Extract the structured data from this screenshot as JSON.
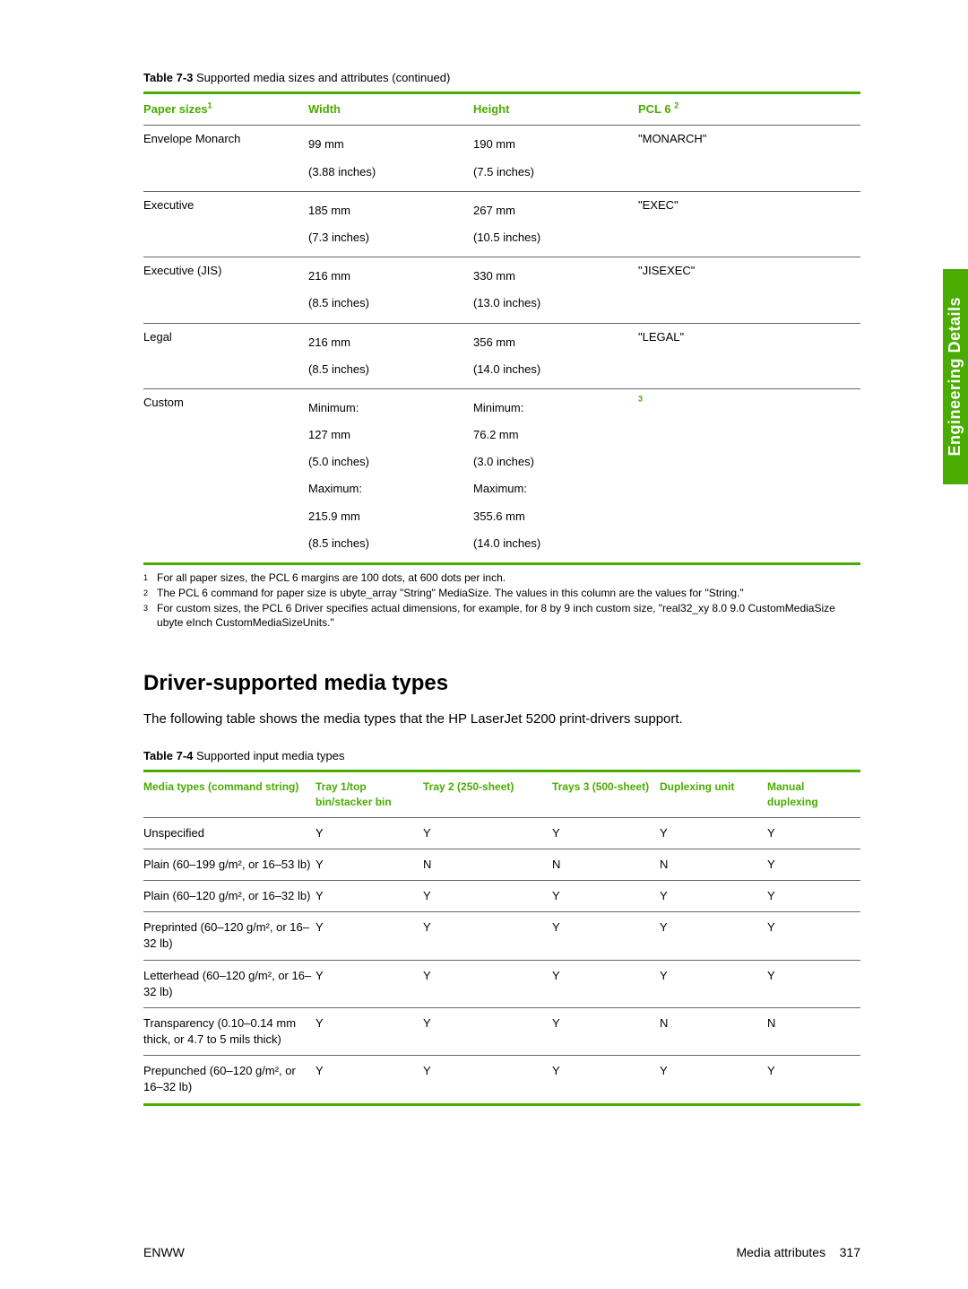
{
  "side_tab": "Engineering Details",
  "table1": {
    "caption_prefix": "Table 7-3",
    "caption_text": "  Supported media sizes and attributes (continued)",
    "headers": {
      "c1": "Paper sizes",
      "c1_sup": "1",
      "c2": "Width",
      "c3": "Height",
      "c4": "PCL 6 ",
      "c4_sup": "2"
    },
    "rows": [
      {
        "name": "Envelope Monarch",
        "w": [
          "99 mm",
          "(3.88 inches)"
        ],
        "h": [
          "190 mm",
          "(7.5 inches)"
        ],
        "pcl": "\"MONARCH\""
      },
      {
        "name": "Executive",
        "w": [
          "185 mm",
          "(7.3 inches)"
        ],
        "h": [
          "267 mm",
          "(10.5 inches)"
        ],
        "pcl": "\"EXEC\""
      },
      {
        "name": "Executive (JIS)",
        "w": [
          "216 mm",
          "(8.5 inches)"
        ],
        "h": [
          "330 mm",
          "(13.0 inches)"
        ],
        "pcl": "\"JISEXEC\""
      },
      {
        "name": "Legal",
        "w": [
          "216 mm",
          "(8.5 inches)"
        ],
        "h": [
          "356 mm",
          "(14.0 inches)"
        ],
        "pcl": "\"LEGAL\""
      },
      {
        "name": "Custom",
        "w": [
          "Minimum:",
          "127 mm",
          "(5.0 inches)",
          "Maximum:",
          "215.9 mm",
          "(8.5 inches)"
        ],
        "h": [
          "Minimum:",
          "76.2 mm",
          "(3.0 inches)",
          "Maximum:",
          "355.6 mm",
          "(14.0 inches)"
        ],
        "pcl": "",
        "pcl_sup": "3"
      }
    ],
    "col_widths": [
      "23%",
      "23%",
      "23%",
      "31%"
    ]
  },
  "footnotes": [
    {
      "n": "1",
      "t": "For all paper sizes, the PCL 6 margins are 100 dots, at 600 dots per inch."
    },
    {
      "n": "2",
      "t": "The PCL 6 command for paper size is ubyte_array \"String\" MediaSize. The values in this column are the values for \"String.\""
    },
    {
      "n": "3",
      "t": "For custom sizes, the PCL 6 Driver specifies actual dimensions, for example, for 8 by 9 inch custom size, \"real32_xy 8.0 9.0 CustomMediaSize ubyte eInch CustomMediaSizeUnits.\""
    }
  ],
  "section_heading": "Driver-supported media types",
  "intro": "The following table shows the media types that the HP LaserJet 5200 print-drivers support.",
  "table2": {
    "caption_prefix": "Table 7-4",
    "caption_text": "  Supported input media types",
    "headers": [
      "Media types (command string)",
      "Tray 1/top bin/stacker bin",
      "Tray 2 (250-sheet)",
      "Trays 3 (500-sheet)",
      "Duplexing unit",
      "Manual duplexing"
    ],
    "col_widths": [
      "24%",
      "15%",
      "18%",
      "15%",
      "15%",
      "13%"
    ],
    "rows": [
      {
        "c": [
          "Unspecified",
          "Y",
          "Y",
          "Y",
          "Y",
          "Y"
        ]
      },
      {
        "c": [
          "Plain (60–199 g/m², or 16–53 lb)",
          "Y",
          "N",
          "N",
          "N",
          "Y"
        ]
      },
      {
        "c": [
          "Plain (60–120 g/m², or 16–32 lb)",
          "Y",
          "Y",
          "Y",
          "Y",
          "Y"
        ]
      },
      {
        "c": [
          "Preprinted (60–120 g/m², or 16–32 lb)",
          "Y",
          "Y",
          "Y",
          "Y",
          "Y"
        ]
      },
      {
        "c": [
          "Letterhead (60–120 g/m², or 16–32 lb)",
          "Y",
          "Y",
          "Y",
          "Y",
          "Y"
        ]
      },
      {
        "c": [
          "Transparency (0.10–0.14 mm thick, or 4.7 to 5 mils thick)",
          "Y",
          "Y",
          "Y",
          "N",
          "N"
        ]
      },
      {
        "c": [
          "Prepunched (60–120 g/m², or 16–32 lb)",
          "Y",
          "Y",
          "Y",
          "Y",
          "Y"
        ]
      }
    ]
  },
  "footer": {
    "left": "ENWW",
    "right_label": "Media attributes",
    "right_page": "317"
  },
  "colors": {
    "accent": "#4aab00",
    "text": "#000000",
    "border": "#666666"
  }
}
